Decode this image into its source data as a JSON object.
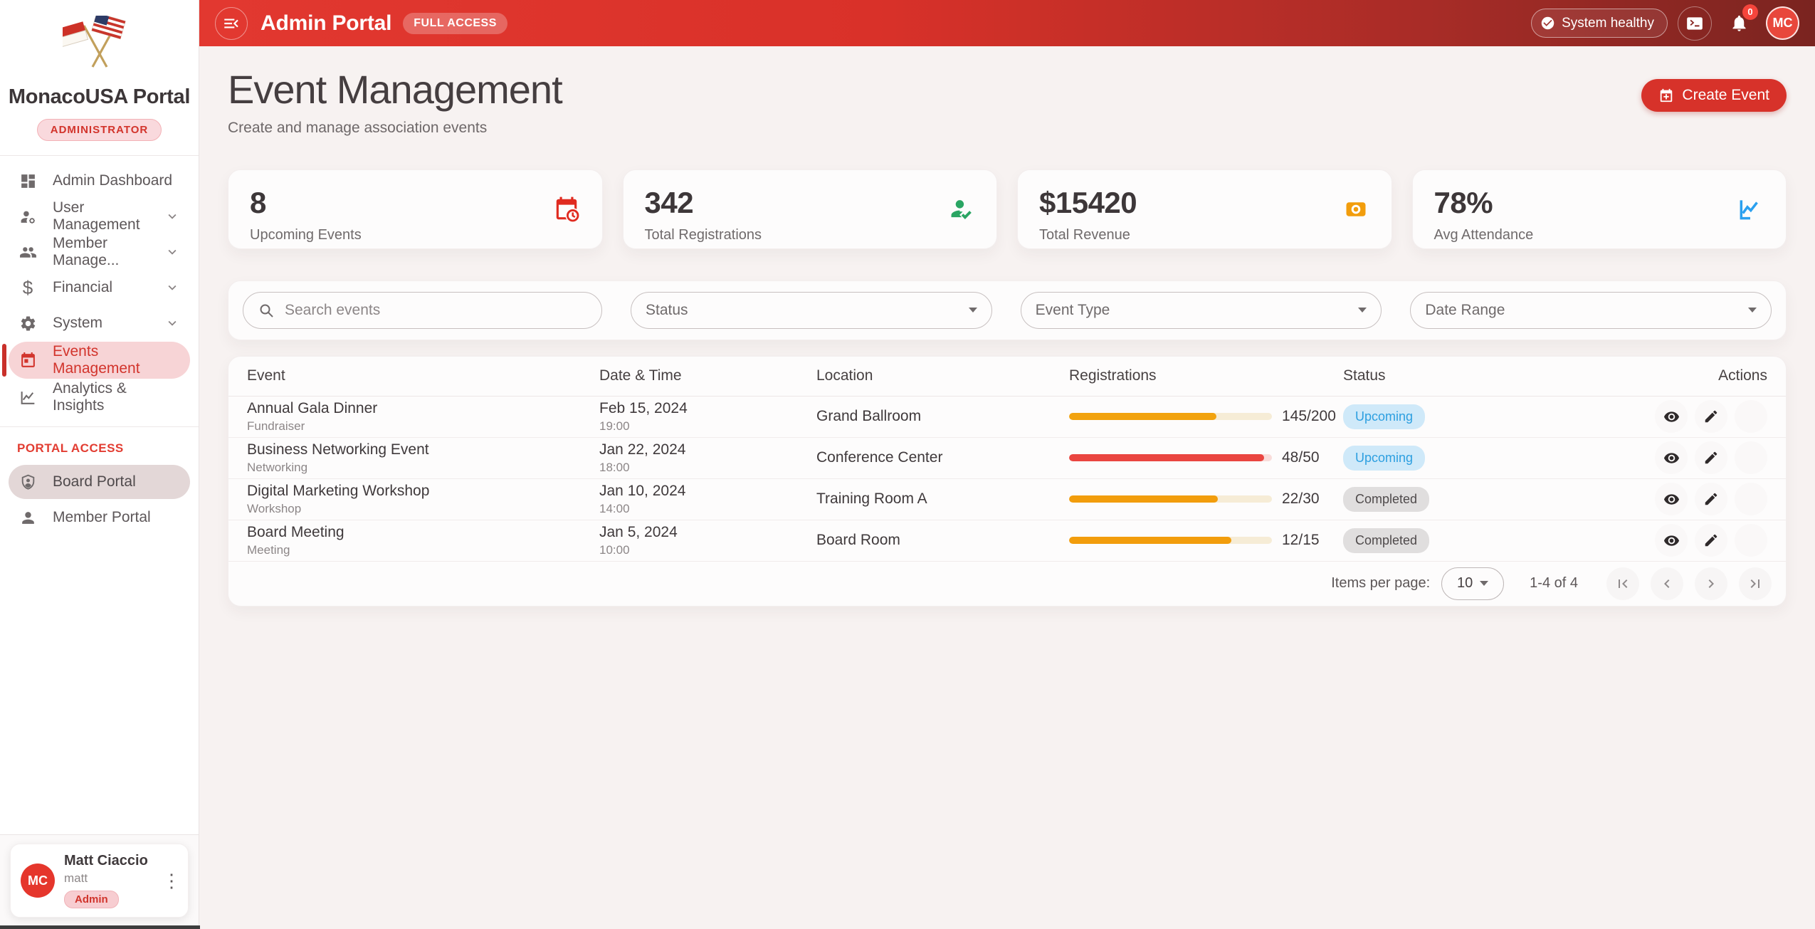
{
  "colors": {
    "brand_red": "#d7322a",
    "header_gradient_start": "#e23830",
    "header_gradient_end": "#7a2420",
    "active_nav_bg": "#f7d4d6",
    "status_upcoming_bg": "#cfe9f9",
    "status_upcoming_text": "#2d9fe0",
    "status_completed_bg": "#e0dede",
    "status_completed_text": "#4f4a4b"
  },
  "sidebar": {
    "brand": "MonacoUSA Portal",
    "role_badge": "ADMINISTRATOR",
    "nav": [
      {
        "label": "Admin Dashboard"
      },
      {
        "label": "User Management"
      },
      {
        "label": "Member Manage..."
      },
      {
        "label": "Financial"
      },
      {
        "label": "System"
      },
      {
        "label": "Events Management"
      },
      {
        "label": "Analytics & Insights"
      }
    ],
    "section_label": "PORTAL ACCESS",
    "portals": [
      {
        "label": "Board Portal"
      },
      {
        "label": "Member Portal"
      }
    ],
    "user": {
      "name": "Matt Ciaccio",
      "username": "matt",
      "role": "Admin",
      "initials": "MC"
    }
  },
  "header": {
    "title": "Admin Portal",
    "access_badge": "FULL ACCESS",
    "system_status": "System healthy",
    "notification_count": "0",
    "avatar_initials": "MC"
  },
  "page": {
    "title": "Event Management",
    "subtitle": "Create and manage association events",
    "create_button": "Create Event"
  },
  "stats": [
    {
      "value": "8",
      "label": "Upcoming Events",
      "icon": "calendar-clock-icon",
      "icon_color": "#e02b20"
    },
    {
      "value": "342",
      "label": "Total Registrations",
      "icon": "person-check-icon",
      "icon_color": "#2aa563"
    },
    {
      "value": "$15420",
      "label": "Total Revenue",
      "icon": "payments-icon",
      "icon_color": "#f29d0c"
    },
    {
      "value": "78%",
      "label": "Avg Attendance",
      "icon": "line-chart-icon",
      "icon_color": "#2ba0ef"
    }
  ],
  "filters": {
    "search_placeholder": "Search events",
    "status_label": "Status",
    "event_type_label": "Event Type",
    "date_range_label": "Date Range"
  },
  "table": {
    "columns": [
      "Event",
      "Date & Time",
      "Location",
      "Registrations",
      "Status",
      "Actions"
    ],
    "rows": [
      {
        "event": "Annual Gala Dinner",
        "type": "Fundraiser",
        "date": "Feb 15, 2024",
        "time": "19:00",
        "location": "Grand Ballroom",
        "registrations": "145/200",
        "progress_percent": 72.5,
        "bar_color": "#f2a30f",
        "track_color": "#f6ecd6",
        "status": "Upcoming"
      },
      {
        "event": "Business Networking Event",
        "type": "Networking",
        "date": "Jan 22, 2024",
        "time": "18:00",
        "location": "Conference Center",
        "registrations": "48/50",
        "progress_percent": 96,
        "bar_color": "#ea4540",
        "track_color": "#f9dcda",
        "status": "Upcoming"
      },
      {
        "event": "Digital Marketing Workshop",
        "type": "Workshop",
        "date": "Jan 10, 2024",
        "time": "14:00",
        "location": "Training Room A",
        "registrations": "22/30",
        "progress_percent": 73.3,
        "bar_color": "#f29d0c",
        "track_color": "#f6ecd6",
        "status": "Completed"
      },
      {
        "event": "Board Meeting",
        "type": "Meeting",
        "date": "Jan 5, 2024",
        "time": "10:00",
        "location": "Board Room",
        "registrations": "12/15",
        "progress_percent": 80,
        "bar_color": "#f29d0c",
        "track_color": "#f6ecd6",
        "status": "Completed"
      }
    ]
  },
  "pagination": {
    "items_per_page_label": "Items per page:",
    "items_per_page": "10",
    "range": "1-4 of 4"
  }
}
